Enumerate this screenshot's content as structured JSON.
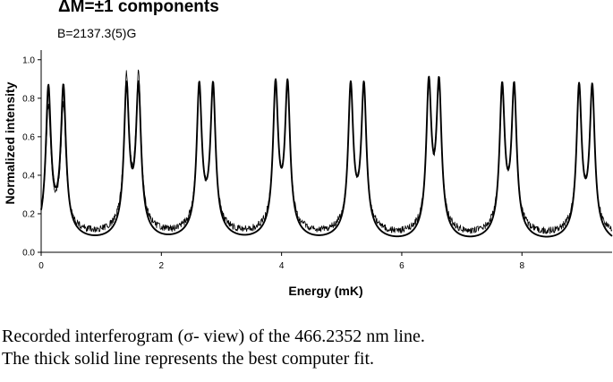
{
  "chart_data": {
    "type": "line",
    "title": "ΔM=±1 components",
    "subtitle": "B=2137.3(5)G",
    "xlabel": "Energy (mK)",
    "ylabel": "Normalized intensity",
    "xlim": [
      0,
      9.5
    ],
    "ylim": [
      0,
      1.05
    ],
    "x_ticks": [
      "0",
      "2",
      "4",
      "6",
      "8"
    ],
    "y_ticks": [
      "0.0",
      "0.2",
      "0.4",
      "0.6",
      "0.8",
      "1.0"
    ],
    "grid": false,
    "legend": "none",
    "series": [
      {
        "style": "thick solid line (computer fit)",
        "color": "#000000",
        "peak_pairs_x": [
          [
            0.12,
            0.37
          ],
          [
            1.42,
            1.62
          ],
          [
            2.63,
            2.86
          ],
          [
            3.9,
            4.1
          ],
          [
            5.15,
            5.37
          ],
          [
            6.45,
            6.62
          ],
          [
            7.67,
            7.87
          ],
          [
            8.95,
            9.17
          ]
        ],
        "peak_heights": [
          0.94,
          0.93,
          0.94,
          0.94,
          0.94,
          0.94,
          0.93,
          0.94
        ],
        "dip_between_peaks": 0.45,
        "baseline": 0.02
      },
      {
        "style": "thin line (recorded data)",
        "color": "#000000",
        "peak_pairs_x": [
          [
            0.12,
            0.37
          ],
          [
            1.42,
            1.62
          ],
          [
            2.63,
            2.86
          ],
          [
            3.9,
            4.1
          ],
          [
            5.15,
            5.37
          ],
          [
            6.45,
            6.62
          ],
          [
            7.67,
            7.87
          ],
          [
            8.95,
            9.17
          ]
        ],
        "peak_heights": [
          0.82,
          1.0,
          0.91,
          0.93,
          0.93,
          0.92,
          0.9,
          0.91
        ],
        "dip_between_peaks": 0.42,
        "baseline": 0.06
      }
    ]
  },
  "caption": {
    "line1": "Recorded interferogram (σ- view) of the 466.2352 nm line.",
    "line2": "The thick solid line represents the best computer fit."
  }
}
